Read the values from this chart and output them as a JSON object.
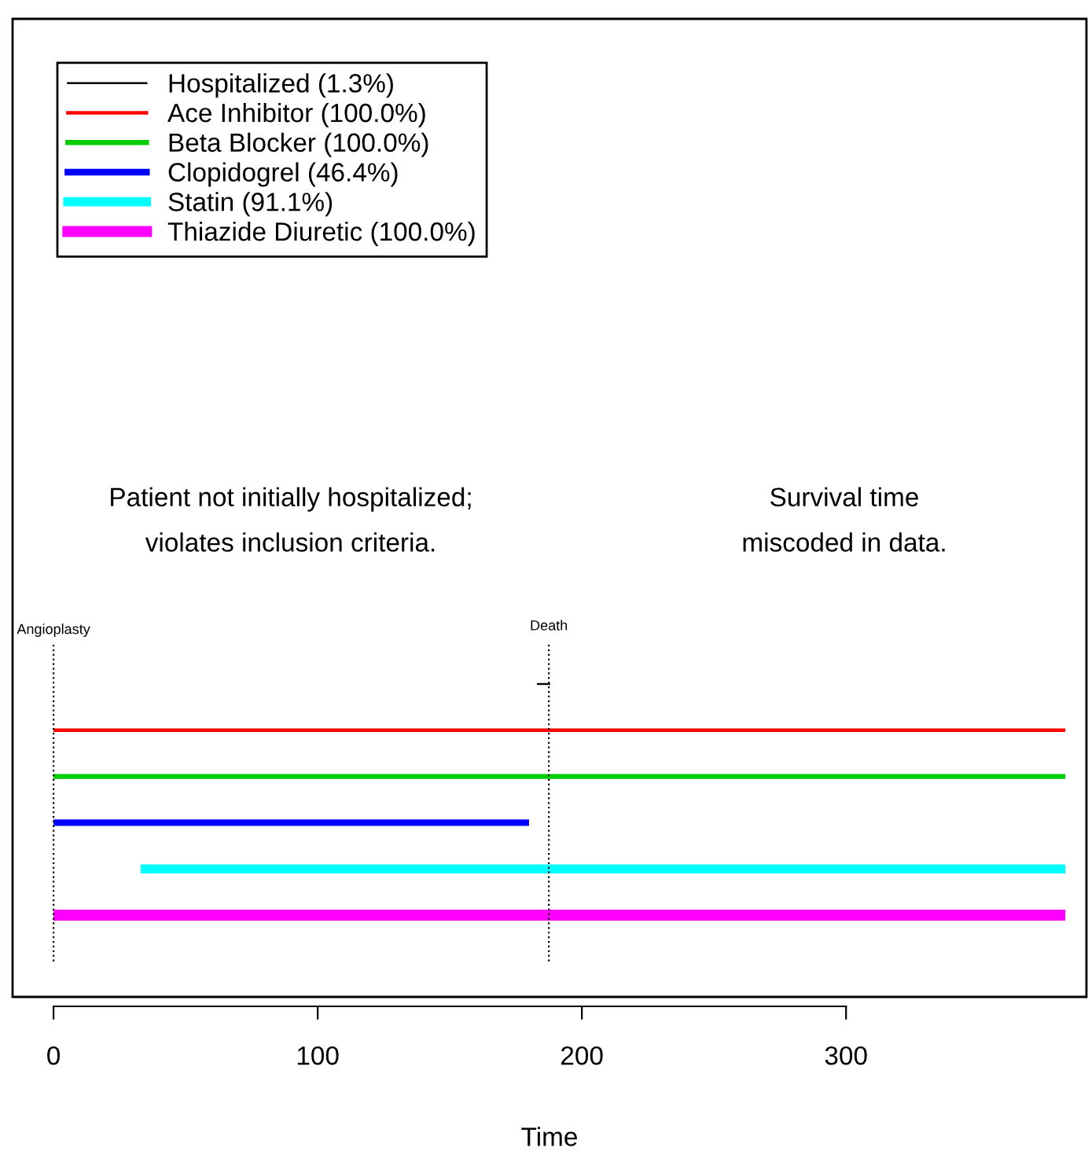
{
  "chart_data": {
    "type": "bar",
    "orientation": "horizontal",
    "xlabel": "Time",
    "categories": [
      null,
      null,
      null,
      null,
      null,
      null
    ],
    "series": [
      {
        "name": "Hospitalized (1.3%)",
        "color": "#000000",
        "base": [
          183,
          null,
          null,
          null,
          null,
          null
        ],
        "values": [
          5,
          null,
          null,
          null,
          null,
          null
        ]
      },
      {
        "name": "Ace Inhibitor (100.0%)",
        "color": "#ff0000",
        "base": [
          null,
          0,
          null,
          null,
          null,
          null
        ],
        "values": [
          null,
          383,
          null,
          null,
          null,
          null
        ]
      },
      {
        "name": "Beta Blocker (100.0%)",
        "color": "#00cd00",
        "base": [
          null,
          null,
          0,
          null,
          null,
          null
        ],
        "values": [
          null,
          null,
          383,
          null,
          null,
          null
        ]
      },
      {
        "name": "Clopidogrel (46.4%)",
        "color": "#0000ff",
        "base": [
          null,
          null,
          null,
          0,
          null,
          null
        ],
        "values": [
          null,
          null,
          null,
          180,
          null,
          null
        ]
      },
      {
        "name": "Statin (91.1%)",
        "color": "#00ffff",
        "base": [
          null,
          null,
          null,
          null,
          33,
          null
        ],
        "values": [
          null,
          null,
          null,
          null,
          350,
          null
        ]
      },
      {
        "name": "Thiazide Diuretic (100.0%)",
        "color": "#ff00ff",
        "base": [
          null,
          null,
          null,
          null,
          null,
          0
        ],
        "values": [
          null,
          null,
          null,
          null,
          null,
          383
        ]
      }
    ],
    "xlim": [
      -15.5,
      391
    ],
    "xticks": [
      0,
      100,
      200,
      300
    ],
    "ref_lines": [
      {
        "axis": "x",
        "value": 0,
        "label": "Angioplasty",
        "color": "#000000",
        "line_style": "dotted"
      },
      {
        "axis": "x",
        "value": 187.5,
        "label": "Death",
        "color": "#000000",
        "line_style": "dotted"
      }
    ],
    "annotations": [
      "Patient not initially hospitalized;\nviolates inclusion criteria.",
      "Survival time\nmiscoded in data."
    ],
    "legend": "top left",
    "grid": false
  }
}
